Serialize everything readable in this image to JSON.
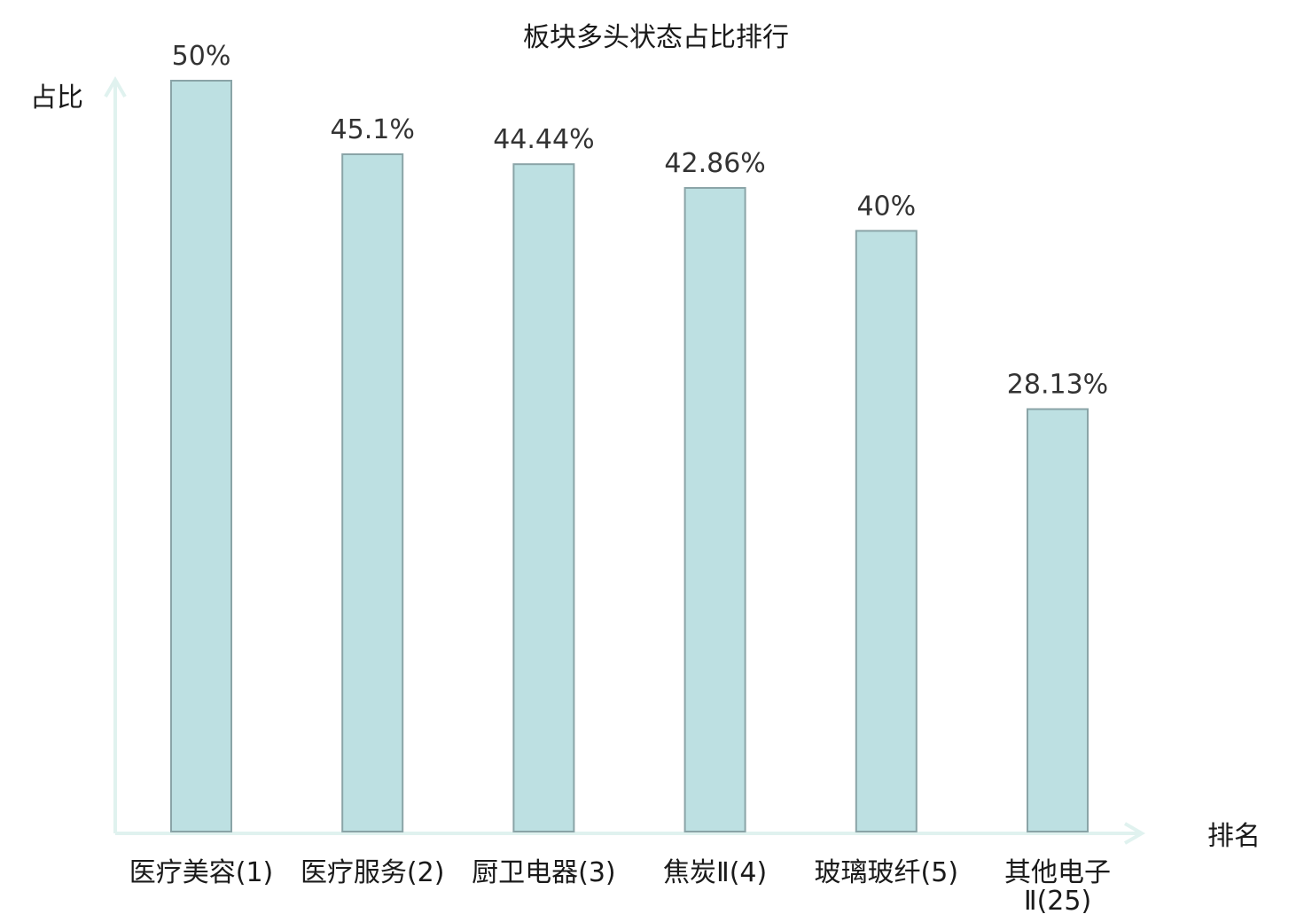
{
  "chart_data": {
    "type": "bar",
    "title": "板块多头状态占比排行",
    "ylabel": "占比",
    "xlabel": "排名",
    "ylim": [
      0,
      50
    ],
    "categories": [
      "医疗美容(1)",
      "医疗服务(2)",
      "厨卫电器(3)",
      "焦炭Ⅱ(4)",
      "玻璃玻纤(5)",
      "其他电子Ⅱ(25)"
    ],
    "category_lines": [
      [
        "医疗美容(1)"
      ],
      [
        "医疗服务(2)"
      ],
      [
        "厨卫电器(3)"
      ],
      [
        "焦炭Ⅱ(4)"
      ],
      [
        "玻璃玻纤(5)"
      ],
      [
        "其他电子",
        "Ⅱ(25)"
      ]
    ],
    "values": [
      50,
      45.1,
      44.44,
      42.86,
      40,
      28.13
    ],
    "value_labels": [
      "50%",
      "45.1%",
      "44.44%",
      "42.86%",
      "40%",
      "28.13%"
    ],
    "highlight_index": 5,
    "grid": false,
    "colors": {
      "bar_fill": "#bde0e2",
      "bar_stroke": "#8aa4a7",
      "axis": "#e0f2ef",
      "text": "#1a1a1a",
      "value_text": "#333333",
      "highlight_text": "#e3161b"
    }
  }
}
